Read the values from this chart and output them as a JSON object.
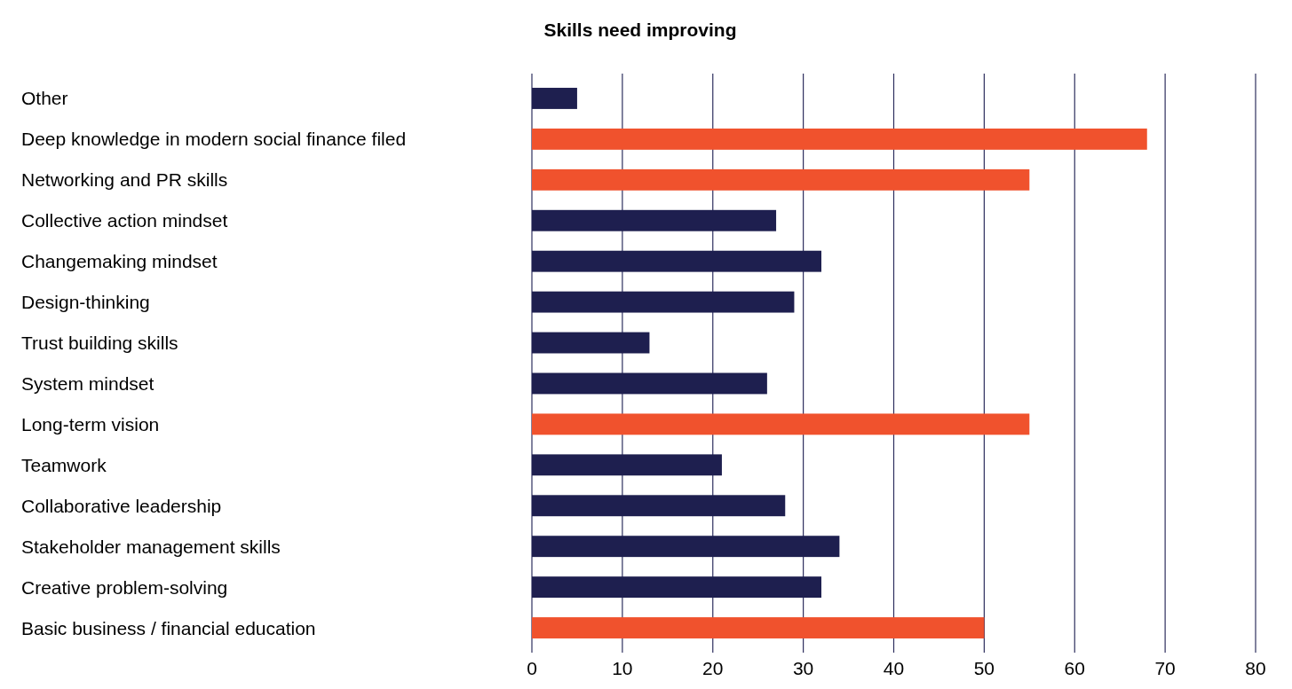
{
  "chart_data": {
    "type": "bar",
    "orientation": "horizontal",
    "title": "Skills need improving",
    "categories": [
      "Other",
      "Deep knowledge in modern social finance filed",
      "Networking and PR skills",
      "Collective action mindset",
      "Changemaking mindset",
      "Design-thinking",
      "Trust building skills",
      "System mindset",
      "Long-term vision",
      "Teamwork",
      "Collaborative leadership",
      "Stakeholder management skills",
      "Creative problem-solving",
      "Basic business / financial education"
    ],
    "values": [
      5,
      68,
      55,
      27,
      32,
      29,
      13,
      26,
      55,
      21,
      28,
      34,
      32,
      50
    ],
    "colors": [
      "#1e1f4f",
      "#f0522d",
      "#f0522d",
      "#1e1f4f",
      "#1e1f4f",
      "#1e1f4f",
      "#1e1f4f",
      "#1e1f4f",
      "#f0522d",
      "#1e1f4f",
      "#1e1f4f",
      "#1e1f4f",
      "#1e1f4f",
      "#f0522d"
    ],
    "xlim": [
      0,
      80
    ],
    "xticks": [
      0,
      10,
      20,
      30,
      40,
      50,
      60,
      70,
      80
    ],
    "grid": "x"
  }
}
